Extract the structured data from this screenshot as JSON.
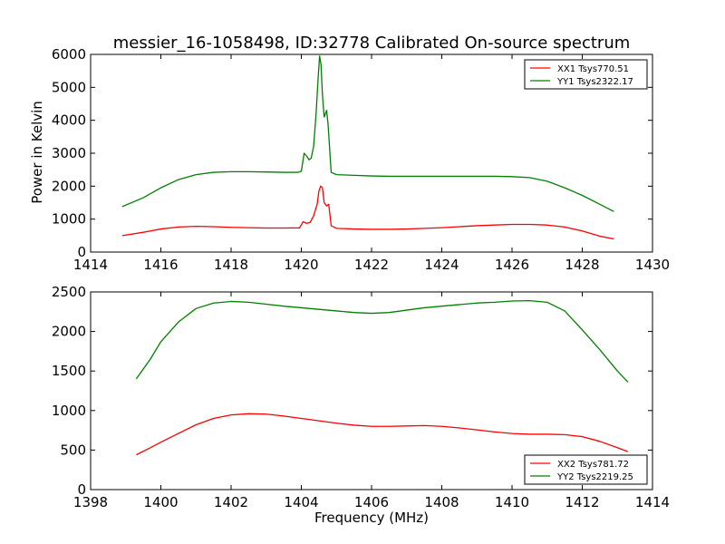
{
  "figure": {
    "title": "messier_16-1058498, ID:32778 Calibrated On-source spectrum",
    "ylabel": "Power in Kelvin",
    "xlabel": "Frequency (MHz)"
  },
  "colors": {
    "red": "#ff0000",
    "green": "#008000",
    "axes": "#000000"
  },
  "chart_data": [
    {
      "type": "line",
      "xlim": [
        1414,
        1430
      ],
      "ylim": [
        0,
        6000
      ],
      "xticks": [
        "1414",
        "1416",
        "1418",
        "1420",
        "1422",
        "1424",
        "1426",
        "1428",
        "1430"
      ],
      "yticks": [
        "0",
        "1000",
        "2000",
        "3000",
        "4000",
        "5000",
        "6000"
      ],
      "legend_position": "top-right",
      "series": [
        {
          "name": "XX1 Tsys770.51",
          "color": "#ff0000",
          "x": [
            1414.9,
            1415.5,
            1416,
            1416.5,
            1417,
            1417.5,
            1418,
            1418.5,
            1419,
            1419.5,
            1419.95,
            1420.05,
            1420.15,
            1420.25,
            1420.35,
            1420.45,
            1420.5,
            1420.55,
            1420.6,
            1420.65,
            1420.72,
            1420.78,
            1420.85,
            1421,
            1421.5,
            1422,
            1422.5,
            1423,
            1423.5,
            1424,
            1424.5,
            1425,
            1425.5,
            1426,
            1426.5,
            1427,
            1427.5,
            1428,
            1428.5,
            1428.9
          ],
          "y": [
            500,
            600,
            700,
            760,
            780,
            770,
            750,
            740,
            730,
            730,
            735,
            920,
            870,
            900,
            1100,
            1450,
            1850,
            2000,
            1950,
            1500,
            1400,
            1450,
            800,
            720,
            700,
            690,
            690,
            700,
            720,
            740,
            770,
            800,
            820,
            840,
            840,
            820,
            760,
            640,
            480,
            400
          ]
        },
        {
          "name": "YY1 Tsys2322.17",
          "color": "#008000",
          "x": [
            1414.9,
            1415.5,
            1416,
            1416.5,
            1417,
            1417.5,
            1418,
            1418.5,
            1419,
            1419.5,
            1419.9,
            1420,
            1420.08,
            1420.16,
            1420.22,
            1420.28,
            1420.35,
            1420.42,
            1420.48,
            1420.52,
            1420.56,
            1420.6,
            1420.65,
            1420.72,
            1420.76,
            1420.85,
            1421,
            1421.5,
            1422,
            1422.5,
            1423,
            1423.5,
            1424,
            1424.5,
            1425,
            1425.5,
            1426,
            1426.5,
            1427,
            1427.5,
            1428,
            1428.5,
            1428.9
          ],
          "y": [
            1380,
            1650,
            1950,
            2200,
            2350,
            2420,
            2440,
            2440,
            2430,
            2420,
            2420,
            2450,
            3000,
            2900,
            2800,
            2850,
            3200,
            4200,
            5300,
            5950,
            5700,
            4800,
            4100,
            4300,
            3900,
            2420,
            2350,
            2330,
            2310,
            2300,
            2300,
            2300,
            2300,
            2300,
            2300,
            2300,
            2290,
            2260,
            2150,
            1950,
            1720,
            1450,
            1230
          ]
        }
      ]
    },
    {
      "type": "line",
      "xlim": [
        1398,
        1414
      ],
      "ylim": [
        0,
        2500
      ],
      "xticks": [
        "1398",
        "1400",
        "1402",
        "1404",
        "1406",
        "1408",
        "1410",
        "1412",
        "1414"
      ],
      "yticks": [
        "0",
        "500",
        "1000",
        "1500",
        "2000",
        "2500"
      ],
      "legend_position": "bottom-right",
      "series": [
        {
          "name": "XX2 Tsys781.72",
          "color": "#ff0000",
          "x": [
            1399.3,
            1399.7,
            1400,
            1400.5,
            1401,
            1401.5,
            1402,
            1402.5,
            1403,
            1403.5,
            1404,
            1404.5,
            1405,
            1405.5,
            1406,
            1406.5,
            1407,
            1407.5,
            1408,
            1408.5,
            1409,
            1409.5,
            1410,
            1410.5,
            1411,
            1411.5,
            1412,
            1412.5,
            1413,
            1413.3
          ],
          "y": [
            440,
            530,
            600,
            710,
            820,
            900,
            945,
            960,
            955,
            930,
            900,
            870,
            840,
            815,
            800,
            800,
            805,
            810,
            800,
            780,
            755,
            730,
            710,
            700,
            700,
            695,
            670,
            610,
            530,
            480
          ]
        },
        {
          "name": "YY2 Tsys2219.25",
          "color": "#008000",
          "x": [
            1399.3,
            1399.7,
            1400,
            1400.5,
            1401,
            1401.5,
            1402,
            1402.5,
            1403,
            1403.5,
            1404,
            1404.5,
            1405,
            1405.5,
            1406,
            1406.5,
            1407,
            1407.5,
            1408,
            1408.5,
            1409,
            1409.5,
            1410,
            1410.5,
            1411,
            1411.5,
            1412,
            1412.5,
            1413,
            1413.3
          ],
          "y": [
            1400,
            1650,
            1870,
            2120,
            2290,
            2360,
            2380,
            2370,
            2345,
            2320,
            2300,
            2280,
            2260,
            2240,
            2230,
            2240,
            2270,
            2300,
            2320,
            2340,
            2360,
            2370,
            2385,
            2390,
            2370,
            2260,
            2020,
            1770,
            1500,
            1360
          ]
        }
      ]
    }
  ]
}
